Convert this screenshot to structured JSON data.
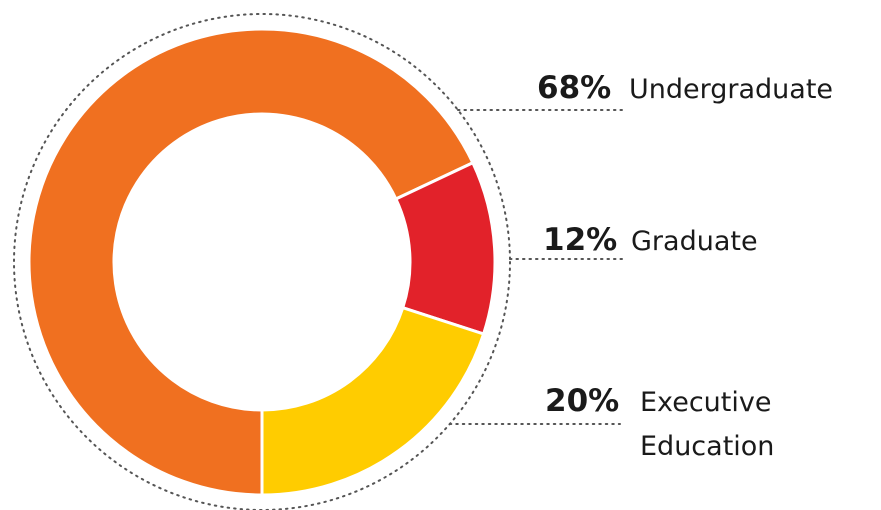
{
  "chart_data": {
    "type": "pie",
    "variant": "donut",
    "title": "",
    "slices": [
      {
        "label": "Undergraduate",
        "lines": [
          "Undergraduate"
        ],
        "value": 68,
        "display": "68%",
        "color": "#F07020"
      },
      {
        "label": "Graduate",
        "lines": [
          "Graduate"
        ],
        "value": 12,
        "display": "12%",
        "color": "#E2222A"
      },
      {
        "label": "Executive Education",
        "lines": [
          "Executive",
          "Education"
        ],
        "value": 20,
        "display": "20%",
        "color": "#FFCC00"
      }
    ],
    "start_angle_deg": 180,
    "direction": "clockwise",
    "legend": "none",
    "outer_ring": "dotted"
  }
}
